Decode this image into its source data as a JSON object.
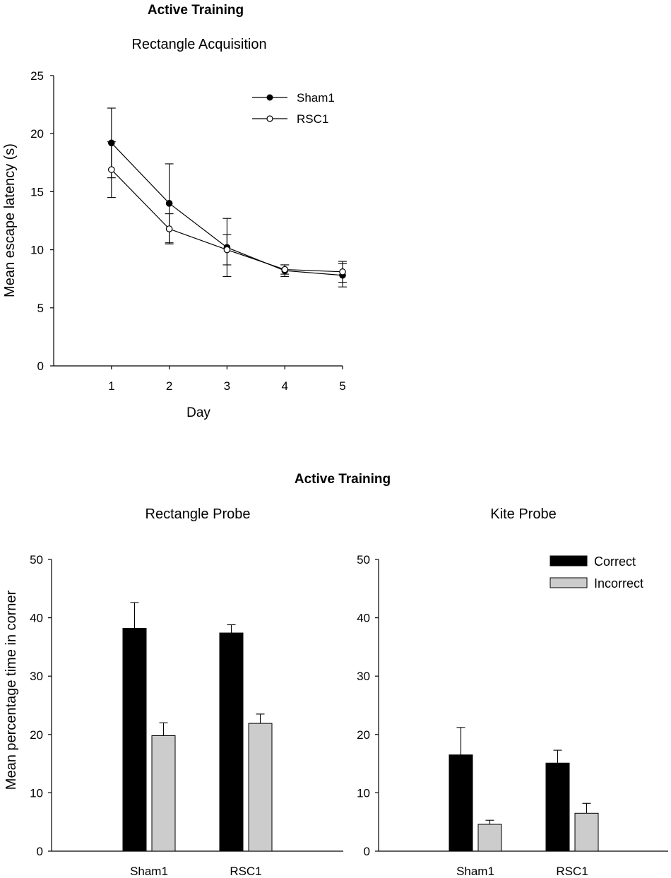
{
  "chart_data": [
    {
      "type": "line",
      "section_title": "Active Training",
      "title": "Rectangle Acquisition",
      "xlabel": "Day",
      "ylabel": "Mean escape latency (s)",
      "x": [
        1,
        2,
        3,
        4,
        5
      ],
      "xlim": [
        0,
        5
      ],
      "ylim": [
        0,
        25
      ],
      "yticks": [
        0,
        5,
        10,
        15,
        20,
        25
      ],
      "xticks": [
        1,
        2,
        3,
        4,
        5
      ],
      "legend_position": "top-right",
      "series": [
        {
          "name": "Sham1",
          "marker": "filled-circle",
          "values": [
            19.2,
            14.0,
            10.2,
            8.2,
            7.8
          ],
          "errors": [
            3.0,
            3.4,
            2.5,
            0.5,
            1.0
          ]
        },
        {
          "name": "RSC1",
          "marker": "open-circle",
          "values": [
            16.9,
            11.8,
            10.0,
            8.3,
            8.1
          ],
          "errors": [
            2.4,
            1.3,
            1.3,
            0.4,
            0.9
          ]
        }
      ]
    },
    {
      "type": "bar",
      "section_title": "Active Training",
      "title": "Rectangle Probe",
      "xlabel": "",
      "ylabel": "Mean percentage time in corner",
      "categories": [
        "Sham1",
        "RSC1"
      ],
      "ylim": [
        0,
        50
      ],
      "yticks": [
        0,
        10,
        20,
        30,
        40,
        50
      ],
      "series": [
        {
          "name": "Correct",
          "color": "#000000",
          "values": [
            38.2,
            37.4
          ],
          "errors": [
            4.4,
            1.4
          ]
        },
        {
          "name": "Incorrect",
          "color": "#cccccc",
          "values": [
            19.8,
            21.9
          ],
          "errors": [
            2.2,
            1.6
          ]
        }
      ]
    },
    {
      "type": "bar",
      "title": "Kite Probe",
      "xlabel": "",
      "ylabel": "",
      "categories": [
        "Sham1",
        "RSC1"
      ],
      "ylim": [
        0,
        50
      ],
      "yticks": [
        0,
        10,
        20,
        30,
        40,
        50
      ],
      "legend_position": "top-right",
      "series": [
        {
          "name": "Correct",
          "color": "#000000",
          "values": [
            16.5,
            15.1
          ],
          "errors": [
            4.7,
            2.2
          ]
        },
        {
          "name": "Incorrect",
          "color": "#cccccc",
          "values": [
            4.6,
            6.5
          ],
          "errors": [
            0.7,
            1.7
          ]
        }
      ]
    }
  ]
}
